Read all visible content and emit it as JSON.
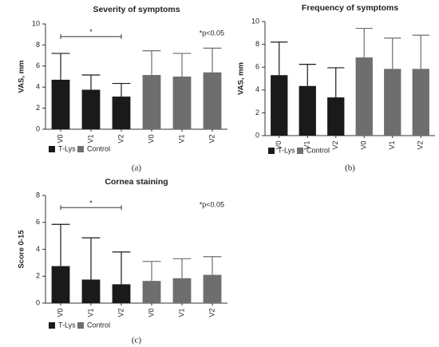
{
  "chart_data": [
    {
      "type": "bar",
      "title": "Severity of symptoms",
      "ylabel": "VAS, mm",
      "panel_label": "(a)",
      "annotation": "*p<0.05",
      "categories": [
        "V0",
        "V1",
        "V2",
        "V0",
        "V1",
        "V2"
      ],
      "series": [
        {
          "name": "T-Lys",
          "color": "#1a1a1a",
          "values": [
            4.7,
            3.75,
            3.1,
            null,
            null,
            null
          ],
          "errors": [
            2.5,
            1.4,
            1.25,
            null,
            null,
            null
          ]
        },
        {
          "name": "Control",
          "color": "#6e6e6e",
          "values": [
            null,
            null,
            null,
            5.15,
            5.0,
            5.4
          ],
          "errors": [
            null,
            null,
            null,
            2.3,
            2.2,
            2.3
          ]
        }
      ],
      "bracket": {
        "from": 0,
        "to": 2,
        "y": 8.8,
        "label": "*"
      },
      "ylim": [
        0,
        10
      ],
      "yticks": [
        0,
        2,
        4,
        6,
        8,
        10
      ]
    },
    {
      "type": "bar",
      "title": "Frequency of symptoms",
      "ylabel": "VAS, mm",
      "panel_label": "(b)",
      "categories": [
        "V0",
        "V1",
        "V2",
        "V0",
        "V1",
        "V2"
      ],
      "series": [
        {
          "name": "T-Lys",
          "color": "#1a1a1a",
          "values": [
            5.3,
            4.35,
            3.35,
            null,
            null,
            null
          ],
          "errors": [
            2.9,
            1.9,
            2.6,
            null,
            null,
            null
          ]
        },
        {
          "name": "Control",
          "color": "#6e6e6e",
          "values": [
            null,
            null,
            null,
            6.85,
            5.85,
            5.85
          ],
          "errors": [
            null,
            null,
            null,
            2.55,
            2.7,
            2.95
          ]
        }
      ],
      "ylim": [
        0,
        10
      ],
      "yticks": [
        0,
        2,
        4,
        6,
        8,
        10
      ]
    },
    {
      "type": "bar",
      "title": "Cornea staining",
      "ylabel": "Score 0-15",
      "panel_label": "(c)",
      "annotation": "*p<0.05",
      "categories": [
        "V0",
        "V1",
        "V2",
        "V0",
        "V1",
        "V2"
      ],
      "series": [
        {
          "name": "T-Lys",
          "color": "#1a1a1a",
          "values": [
            2.75,
            1.75,
            1.4,
            null,
            null,
            null
          ],
          "errors": [
            3.1,
            3.1,
            2.4,
            null,
            null,
            null
          ]
        },
        {
          "name": "Control",
          "color": "#6e6e6e",
          "values": [
            null,
            null,
            null,
            1.65,
            1.85,
            2.1
          ],
          "errors": [
            null,
            null,
            null,
            1.45,
            1.45,
            1.35
          ]
        }
      ],
      "bracket": {
        "from": 0,
        "to": 2,
        "y": 7.1,
        "label": "*"
      },
      "ylim": [
        0,
        8
      ],
      "yticks": [
        0,
        2,
        4,
        6,
        8
      ]
    }
  ]
}
